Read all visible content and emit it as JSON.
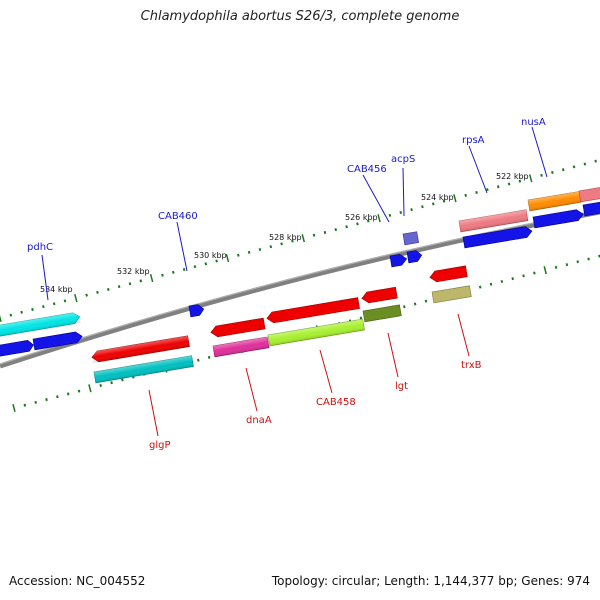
{
  "title": "Chlamydophila abortus S26/3, complete genome",
  "footer": {
    "accession": "Accession: NC_004552",
    "summary": "Topology: circular; Length: 1,144,377 bp; Genes: 974"
  },
  "scale_labels": [
    "534 kbp",
    "532 kbp",
    "530 kbp",
    "528 kbp",
    "526 kbp",
    "524 kbp",
    "522 kbp"
  ],
  "gene_labels_top": [
    "pdhC",
    "CAB460",
    "CAB456",
    "acpS",
    "rpsA",
    "nusA"
  ],
  "gene_labels_bottom": [
    "glgP",
    "dnaA",
    "CAB458",
    "lgt",
    "trxB"
  ],
  "colors": {
    "top_label": "#1a1acc",
    "bottom_label": "#cc1111",
    "backbone": "#808080",
    "tick": "#1a7a1a"
  }
}
